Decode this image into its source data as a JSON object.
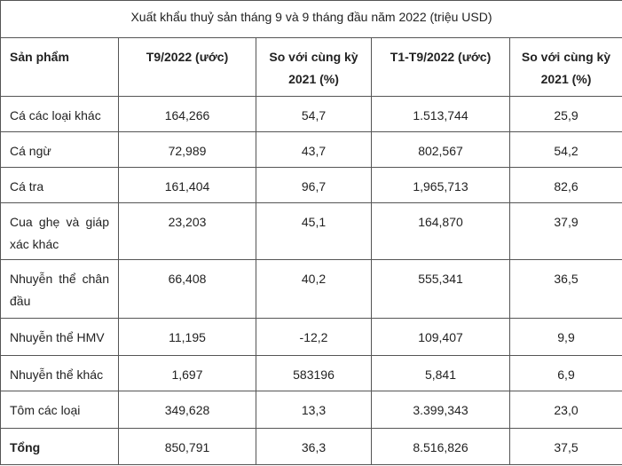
{
  "table": {
    "title": "Xuất khẩu thuỷ sản tháng 9 và 9 tháng đầu năm 2022 (triệu USD)",
    "header": [
      "Sản phẩm",
      "T9/2022 (ước)",
      "So với cùng kỳ 2021 (%)",
      "T1-T9/2022 (ước)",
      "So với cùng kỳ 2021 (%)"
    ],
    "rows": [
      [
        "Cá các loại khác",
        "164,266",
        "54,7",
        "1.513,744",
        "25,9"
      ],
      [
        "Cá ngừ",
        "72,989",
        "43,7",
        "802,567",
        "54,2"
      ],
      [
        "Cá tra",
        "161,404",
        "96,7",
        "1,965,713",
        "82,6"
      ],
      [
        "Cua ghẹ và giáp xác khác",
        "23,203",
        "45,1",
        "164,870",
        "37,9"
      ],
      [
        "Nhuyễn thể chân đầu",
        "66,408",
        "40,2",
        "555,341",
        "36,5"
      ],
      [
        "Nhuyễn thể HMV",
        "11,195",
        "-12,2",
        "109,407",
        "9,9"
      ],
      [
        "Nhuyễn thể khác",
        "1,697",
        "583196",
        "5,841",
        "6,9"
      ],
      [
        "Tôm các loại",
        "349,628",
        "13,3",
        "3.399,343",
        "23,0"
      ],
      [
        "Tổng",
        "850,791",
        "36,3",
        "8.516,826",
        "37,5"
      ]
    ]
  }
}
